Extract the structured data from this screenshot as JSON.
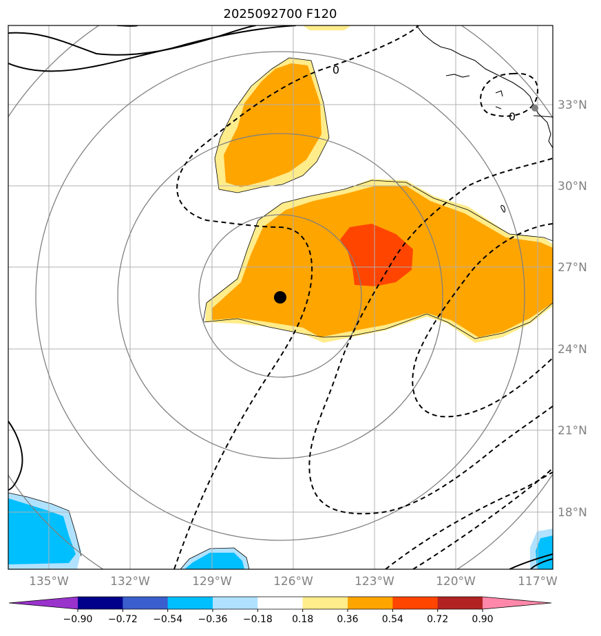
{
  "title": "2025092700 F120",
  "map": {
    "lon_range": [
      "136°W",
      "116.5°W"
    ],
    "lat_range": [
      "15.8°N",
      "35.8°N"
    ],
    "lon_ticks": [
      "135°W",
      "132°W",
      "129°W",
      "126°W",
      "123°W",
      "120°W",
      "117°W"
    ],
    "lat_ticks": [
      "33°N",
      "30°N",
      "27°N",
      "24°N",
      "21°N",
      "18°N"
    ],
    "gridlines": true,
    "storm_center": "126.5°W 25.8°N",
    "contour_labels": [
      "0",
      "0"
    ]
  },
  "colorbar": {
    "labels": [
      "−0.90",
      "−0.72",
      "−0.54",
      "−0.36",
      "−0.18",
      "0.18",
      "0.36",
      "0.54",
      "0.72",
      "0.90"
    ],
    "colors": [
      "#9933cc",
      "#00008b",
      "#3a5fcd",
      "#00bfff",
      "#b0e2ff",
      "#ffffff",
      "#ffec8b",
      "#ffa500",
      "#ff4500",
      "#b22222",
      "#ff88aa"
    ]
  }
}
